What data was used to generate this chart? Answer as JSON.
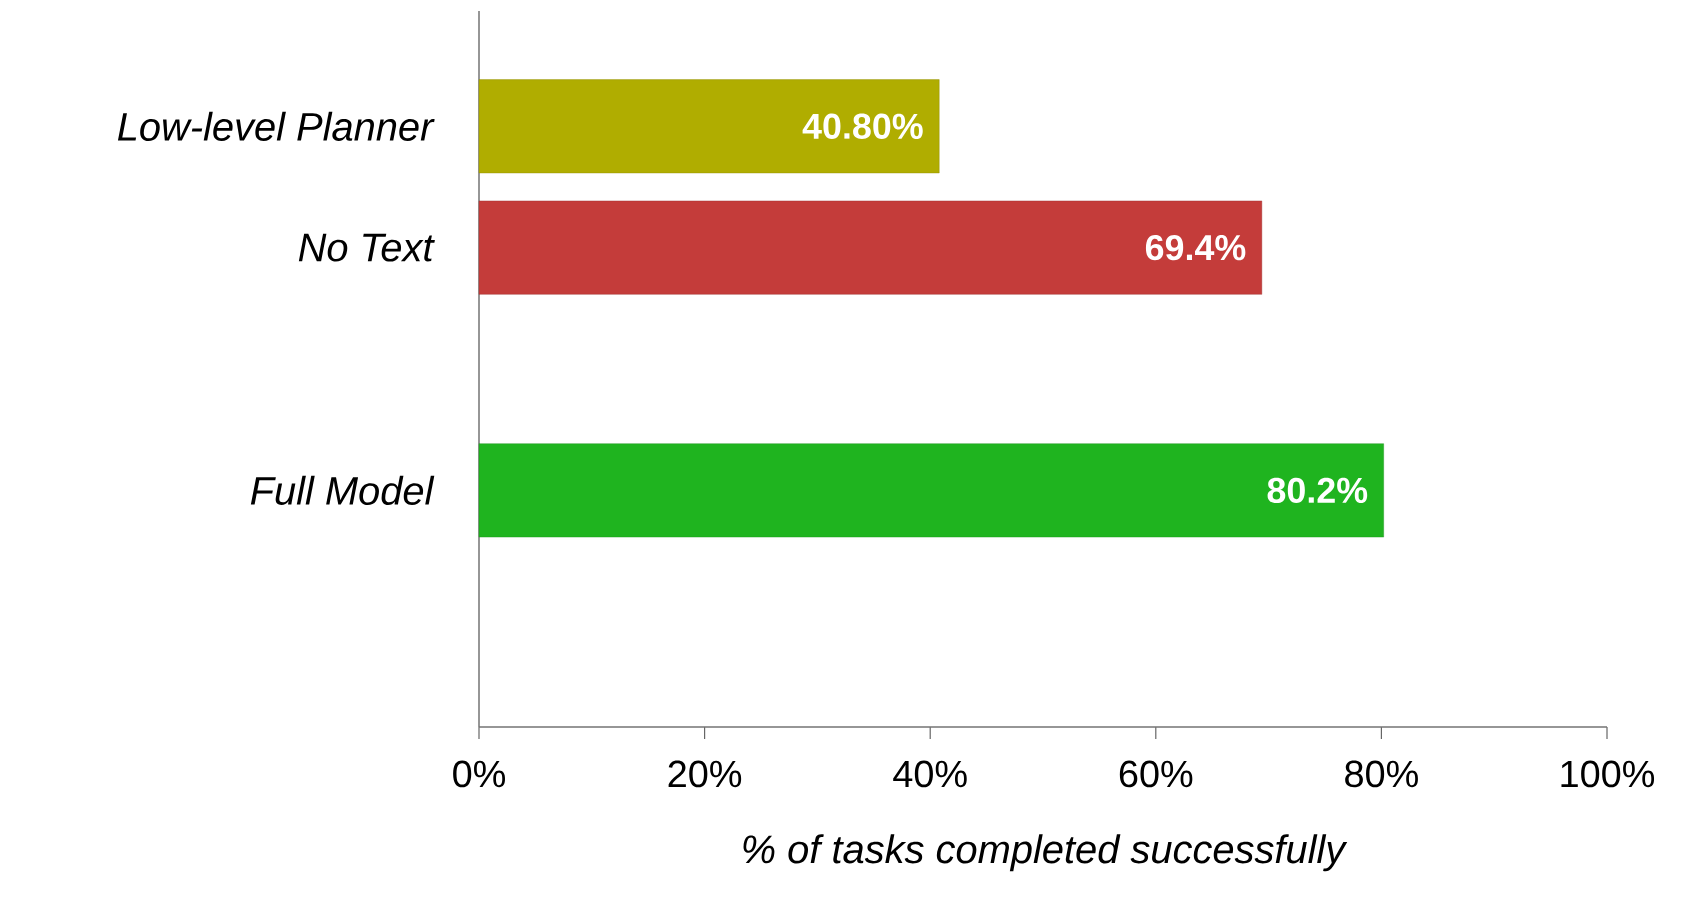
{
  "chart_data": {
    "type": "bar",
    "orientation": "horizontal",
    "xlabel": "% of tasks completed successfully",
    "categories": [
      "Low-level Planner",
      "No Text",
      null,
      "Full Model",
      null
    ],
    "values": [
      40.8,
      69.4,
      null,
      80.2,
      null
    ],
    "value_labels": [
      "40.80%",
      "69.4%",
      null,
      "80.2%",
      null
    ],
    "colors": [
      "#b0ad00",
      "#c43c3a",
      null,
      "#1fb41f",
      null
    ],
    "xlim": [
      0,
      100
    ],
    "xticks": [
      {
        "value": 0,
        "label": "0%"
      },
      {
        "value": 20,
        "label": "20%"
      },
      {
        "value": 40,
        "label": "40%"
      },
      {
        "value": 60,
        "label": "60%"
      },
      {
        "value": 80,
        "label": "80%"
      },
      {
        "value": 100,
        "label": "100%"
      }
    ],
    "grid": false
  }
}
